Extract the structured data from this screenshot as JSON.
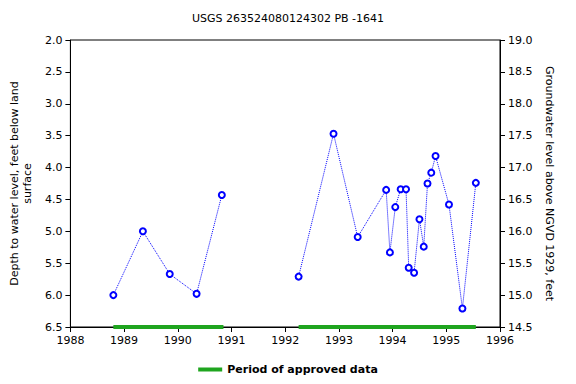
{
  "chart_data": {
    "type": "line",
    "title": "USGS 263524080124302 PB -1641",
    "x_label": "",
    "y_label": "Depth to water level, feet below land\nsurface",
    "y2_label": "Groundwater level above NGVD 1929, feet",
    "x": [
      1988.8,
      1989.35,
      1989.85,
      1990.35,
      1990.82,
      null,
      1992.25,
      1992.9,
      1993.35,
      1993.88,
      1993.95,
      1994.05,
      1994.15,
      1994.25,
      1994.3,
      1994.4,
      1994.5,
      1994.58,
      1994.65,
      1994.72,
      1994.8,
      1995.05,
      1995.3,
      1995.55
    ],
    "values": [
      6.0,
      5.0,
      5.67,
      5.98,
      4.43,
      null,
      5.71,
      3.47,
      5.09,
      4.35,
      5.33,
      4.62,
      4.34,
      4.34,
      5.57,
      5.65,
      4.81,
      5.24,
      4.25,
      4.08,
      3.82,
      4.58,
      6.21,
      4.24
    ],
    "color": "#0000ff",
    "marker": "circle",
    "line_style": "dotted",
    "xlim": [
      1988,
      1996
    ],
    "xticks": [
      1988,
      1989,
      1990,
      1991,
      1992,
      1993,
      1994,
      1995,
      1996
    ],
    "ylim": [
      2.0,
      6.5
    ],
    "yticks": [
      {
        "value": 2.0,
        "label": "2.0"
      },
      {
        "value": 2.5,
        "label": "2.5"
      },
      {
        "value": 3.0,
        "label": "3.0"
      },
      {
        "value": 3.5,
        "label": "3.5"
      },
      {
        "value": 4.0,
        "label": "4.0"
      },
      {
        "value": 4.5,
        "label": "4.5"
      },
      {
        "value": 5.0,
        "label": "5.0"
      },
      {
        "value": 5.5,
        "label": "5.5"
      },
      {
        "value": 6.0,
        "label": "6.0"
      },
      {
        "value": 6.5,
        "label": "6.5"
      }
    ],
    "y2lim": [
      14.5,
      19.0
    ],
    "y2ticks": [
      {
        "value": 14.5,
        "label": "14.5"
      },
      {
        "value": 15.0,
        "label": "15.0"
      },
      {
        "value": 15.5,
        "label": "15.5"
      },
      {
        "value": 16.0,
        "label": "16.0"
      },
      {
        "value": 16.5,
        "label": "16.5"
      },
      {
        "value": 17.0,
        "label": "17.0"
      },
      {
        "value": 17.5,
        "label": "17.5"
      },
      {
        "value": 18.0,
        "label": "18.0"
      },
      {
        "value": 18.5,
        "label": "18.5"
      },
      {
        "value": 19.0,
        "label": "19.0"
      }
    ],
    "grid": false,
    "legend": "bottom",
    "approved_periods": {
      "label": "Period of approved data",
      "color": "#1fa51f",
      "ranges": [
        [
          1988.8,
          1990.85
        ],
        [
          1992.25,
          1995.55
        ]
      ]
    }
  }
}
